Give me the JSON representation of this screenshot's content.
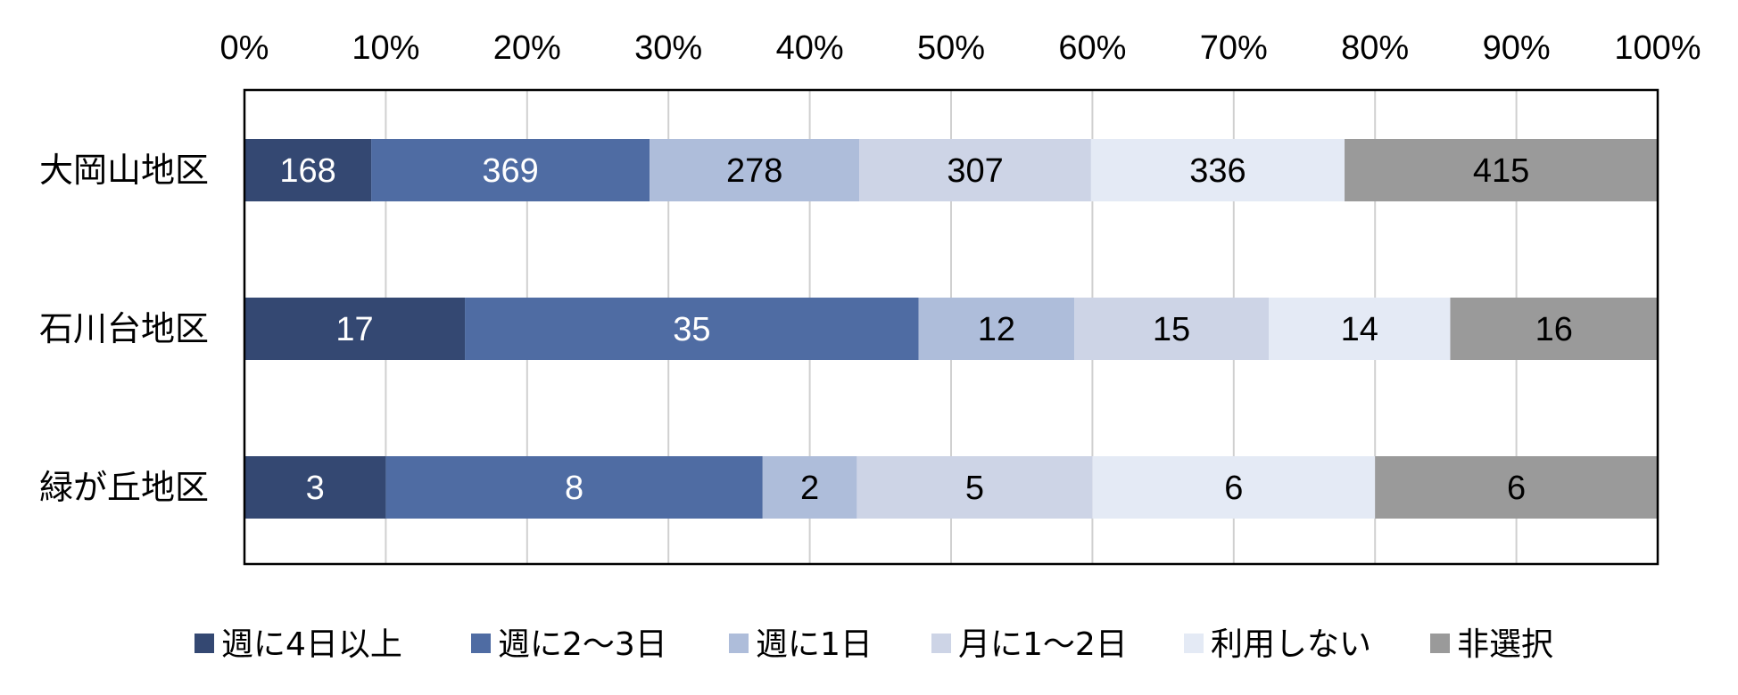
{
  "chart_data": {
    "type": "bar",
    "orientation": "horizontal",
    "stacked": "percent",
    "categories": [
      "大岡山地区",
      "石川台地区",
      "緑が丘地区"
    ],
    "x_ticks": [
      "0%",
      "10%",
      "20%",
      "30%",
      "40%",
      "50%",
      "60%",
      "70%",
      "80%",
      "90%",
      "100%"
    ],
    "xlim": [
      0,
      100
    ],
    "grid": true,
    "legend_position": "bottom",
    "series": [
      {
        "name": "週に4日以上",
        "values": [
          168,
          17,
          3
        ],
        "color": "#344872",
        "label_color": "#ffffff"
      },
      {
        "name": "週に2～3日",
        "values": [
          369,
          35,
          8
        ],
        "color": "#4f6ca3",
        "label_color": "#ffffff"
      },
      {
        "name": "週に1日",
        "values": [
          278,
          12,
          2
        ],
        "color": "#aebdda",
        "label_color": "#000000"
      },
      {
        "name": "月に1～2日",
        "values": [
          307,
          15,
          5
        ],
        "color": "#cdd4e6",
        "label_color": "#000000"
      },
      {
        "name": "利用しない",
        "values": [
          336,
          14,
          6
        ],
        "color": "#e4eaf5",
        "label_color": "#000000"
      },
      {
        "name": "非選択",
        "values": [
          415,
          16,
          6
        ],
        "color": "#9a9a9a",
        "label_color": "#000000"
      }
    ]
  }
}
